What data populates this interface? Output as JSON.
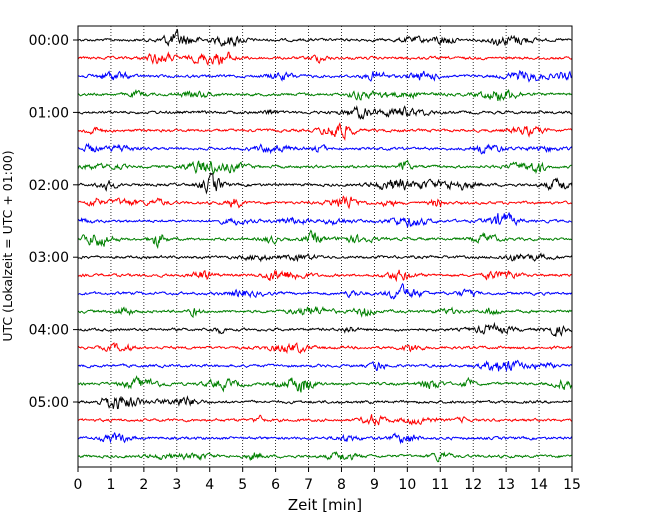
{
  "chart_data": {
    "type": "line",
    "title": "",
    "xlabel": "Zeit  [min]",
    "ylabel": "UTC (Lokalzeit = UTC + 01:00)",
    "xlim": [
      0,
      15
    ],
    "x_ticks": [
      "0",
      "1",
      "2",
      "3",
      "4",
      "5",
      "6",
      "7",
      "8",
      "9",
      "10",
      "11",
      "12",
      "13",
      "14",
      "15"
    ],
    "y_tick_labels": [
      "00:00",
      "01:00",
      "02:00",
      "03:00",
      "04:00",
      "05:00"
    ],
    "y_tick_rows": [
      0,
      4,
      8,
      12,
      16,
      20
    ],
    "row_interval_minutes": 15,
    "row_count": 24,
    "color_cycle": [
      "#000000",
      "#ff0000",
      "#0000ff",
      "#008000"
    ],
    "grid": "vertical dotted lines at each minute",
    "legend": "none"
  }
}
